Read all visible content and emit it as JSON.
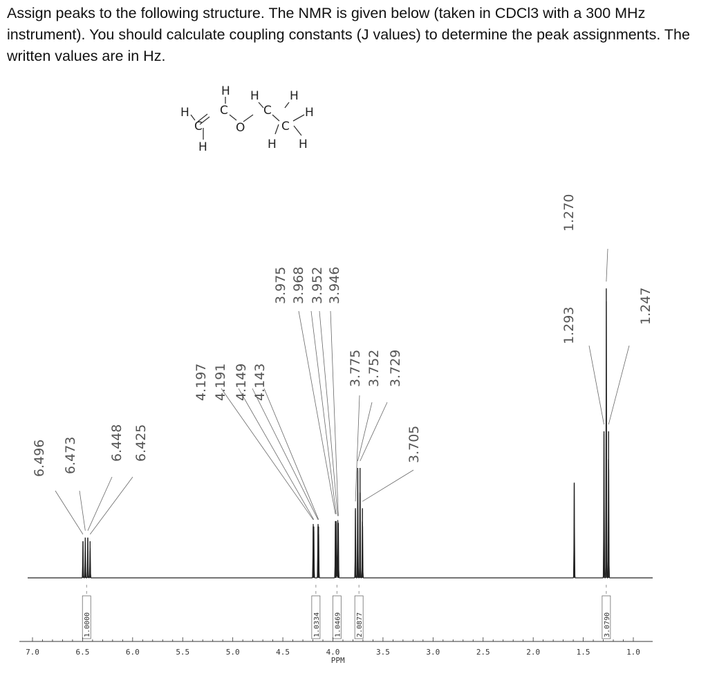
{
  "question": "Assign peaks to the following structure. The NMR is given below (taken in CDCl3 with a 300 MHz instrument). You should calculate coupling constants (J values) to determine the peak assignments. The written values are in Hz.",
  "structure": {
    "atoms": [
      "H",
      "H",
      "H",
      "H",
      "C",
      "C",
      "O",
      "C",
      "C",
      "H",
      "H",
      "H",
      "H"
    ]
  },
  "chart_data": {
    "type": "line",
    "xlabel": "PPM",
    "xlim": [
      7.0,
      1.0
    ],
    "x_reversed": true,
    "ticks": [
      "7.0",
      "6.5",
      "6.0",
      "5.5",
      "5.0",
      "4.5",
      "4.0",
      "3.5",
      "3.0",
      "2.5",
      "2.0",
      "1.5",
      "1.0"
    ],
    "tick_values": [
      7.0,
      6.5,
      6.0,
      5.5,
      5.0,
      4.5,
      4.0,
      3.5,
      3.0,
      2.5,
      2.0,
      1.5,
      1.0
    ],
    "peaks": [
      {
        "label": "6.496",
        "ppm": 6.496,
        "height": 0.1
      },
      {
        "label": "6.473",
        "ppm": 6.473,
        "height": 0.11
      },
      {
        "label": "6.448",
        "ppm": 6.448,
        "height": 0.11
      },
      {
        "label": "6.425",
        "ppm": 6.425,
        "height": 0.1
      },
      {
        "label": "4.197",
        "ppm": 4.197,
        "height": 0.14
      },
      {
        "label": "4.191",
        "ppm": 4.191,
        "height": 0.14
      },
      {
        "label": "4.149",
        "ppm": 4.149,
        "height": 0.14
      },
      {
        "label": "4.143",
        "ppm": 4.143,
        "height": 0.14
      },
      {
        "label": "3.975",
        "ppm": 3.975,
        "height": 0.155
      },
      {
        "label": "3.968",
        "ppm": 3.968,
        "height": 0.155
      },
      {
        "label": "3.952",
        "ppm": 3.952,
        "height": 0.15
      },
      {
        "label": "3.946",
        "ppm": 3.946,
        "height": 0.15
      },
      {
        "label": "3.775",
        "ppm": 3.775,
        "height": 0.19
      },
      {
        "label": "3.752",
        "ppm": 3.752,
        "height": 0.3
      },
      {
        "label": "3.729",
        "ppm": 3.729,
        "height": 0.3
      },
      {
        "label": "3.705",
        "ppm": 3.705,
        "height": 0.19
      },
      {
        "label": "",
        "ppm": 1.59,
        "height": 0.26
      },
      {
        "label": "1.293",
        "ppm": 1.293,
        "height": 0.4
      },
      {
        "label": "1.270",
        "ppm": 1.27,
        "height": 0.79
      },
      {
        "label": "1.247",
        "ppm": 1.247,
        "height": 0.4
      }
    ],
    "integrations": [
      {
        "label": "1.0000",
        "ppm": 6.46
      },
      {
        "label": "1.0334",
        "ppm": 4.17
      },
      {
        "label": "1.0469",
        "ppm": 3.96
      },
      {
        "label": "2.0877",
        "ppm": 3.74
      },
      {
        "label": "3.0790",
        "ppm": 1.27
      }
    ]
  }
}
